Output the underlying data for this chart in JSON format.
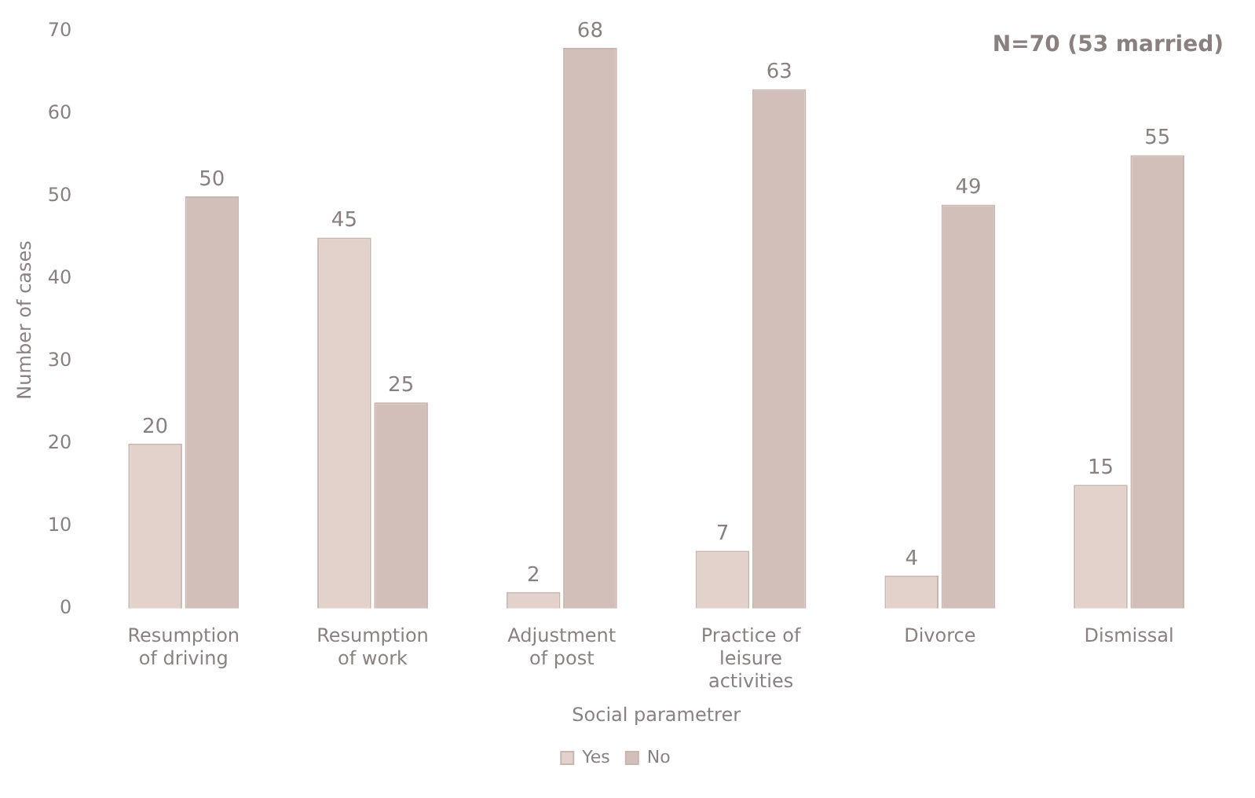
{
  "chart_data": {
    "type": "bar",
    "xlabel": "Social parametrer",
    "ylabel": "Number of cases",
    "categories": [
      [
        "Resumption",
        "of driving"
      ],
      [
        "Resumption",
        "of work"
      ],
      [
        "Adjustment",
        "of post"
      ],
      [
        "Practice of",
        "leisure",
        "activities"
      ],
      [
        "Divorce"
      ],
      [
        "Dismissal"
      ]
    ],
    "series": [
      {
        "name": "Yes",
        "color": "#e3d2cb",
        "values": [
          20,
          45,
          2,
          7,
          4,
          15
        ]
      },
      {
        "name": "No",
        "color": "#d2bfb9",
        "values": [
          50,
          25,
          68,
          63,
          49,
          55
        ]
      }
    ],
    "ylim": [
      0,
      70
    ],
    "yticks": [
      0,
      10,
      20,
      30,
      40,
      50,
      60,
      70
    ],
    "data_labels": true,
    "legend": "bottom",
    "annotations": [
      "N=70 (53 married)"
    ]
  }
}
